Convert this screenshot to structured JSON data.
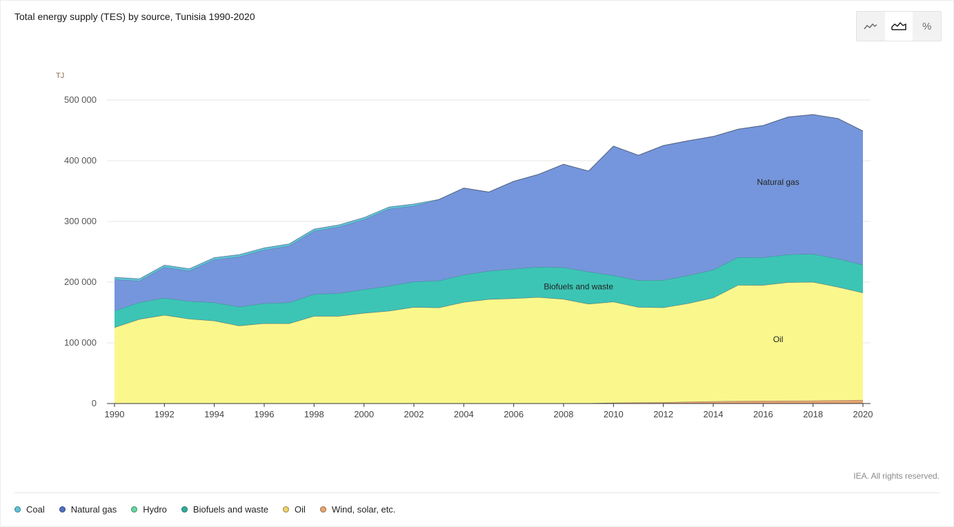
{
  "chart_data": {
    "type": "area",
    "stacked": true,
    "title": "Total energy supply (TES) by source, Tunisia 1990-2020",
    "yunit": "TJ",
    "ylim": [
      0,
      500000
    ],
    "yticks": [
      0,
      100000,
      200000,
      300000,
      400000,
      500000
    ],
    "ytick_labels": [
      "0",
      "100 000",
      "200 000",
      "300 000",
      "400 000",
      "500 000"
    ],
    "xlim": [
      1990,
      2020
    ],
    "xticks": [
      1990,
      1992,
      1994,
      1996,
      1998,
      2000,
      2002,
      2004,
      2006,
      2008,
      2010,
      2012,
      2014,
      2016,
      2018,
      2020
    ],
    "x": [
      1990,
      1991,
      1992,
      1993,
      1994,
      1995,
      1996,
      1997,
      1998,
      1999,
      2000,
      2001,
      2002,
      2003,
      2004,
      2005,
      2006,
      2007,
      2008,
      2009,
      2010,
      2011,
      2012,
      2013,
      2014,
      2015,
      2016,
      2017,
      2018,
      2019,
      2020
    ],
    "grid": true,
    "legend_position": "bottom",
    "series": [
      {
        "name": "Wind, solar, etc.",
        "color": "#e9a56f",
        "values": [
          0,
          0,
          0,
          0,
          0,
          0,
          0,
          0,
          0,
          0,
          0,
          0,
          0,
          0,
          0,
          0,
          0,
          100,
          200,
          600,
          1500,
          1700,
          2200,
          3000,
          3800,
          4200,
          4600,
          4700,
          4800,
          5500,
          5800
        ]
      },
      {
        "name": "Oil",
        "color": "#faf88c",
        "values": [
          125500,
          139000,
          145800,
          139500,
          136400,
          128200,
          132000,
          131800,
          144000,
          144100,
          149000,
          152500,
          158700,
          158000,
          167000,
          171700,
          173200,
          175000,
          171900,
          163500,
          166100,
          157000,
          156000,
          162000,
          170400,
          191000,
          190400,
          195000,
          195400,
          186500,
          176700
        ]
      },
      {
        "name": "Hydro",
        "color": "#64d7a0",
        "values": [
          100,
          100,
          100,
          100,
          100,
          100,
          100,
          100,
          100,
          100,
          100,
          100,
          100,
          100,
          100,
          100,
          100,
          100,
          100,
          100,
          100,
          100,
          100,
          100,
          100,
          100,
          100,
          100,
          100,
          100,
          100
        ]
      },
      {
        "name": "Biofuels and waste",
        "color": "#3cc5b5",
        "values": [
          27000,
          27600,
          28000,
          29000,
          30000,
          31000,
          33000,
          34600,
          36000,
          37500,
          39000,
          41000,
          42000,
          44300,
          45000,
          46500,
          48400,
          49900,
          52000,
          53000,
          43300,
          44000,
          45000,
          46000,
          46000,
          45700,
          45500,
          45800,
          46000,
          46500,
          45900
        ]
      },
      {
        "name": "Natural gas",
        "color": "#7596dc",
        "values": [
          51700,
          35300,
          50500,
          49800,
          70400,
          82500,
          87900,
          93000,
          104000,
          109300,
          114900,
          126900,
          124700,
          133700,
          142900,
          130100,
          144300,
          152500,
          170000,
          165800,
          213100,
          206200,
          221700,
          221900,
          219700,
          210900,
          217400,
          226500,
          229700,
          230900,
          220500
        ]
      },
      {
        "name": "Coal",
        "color": "#5fc4d9",
        "values": [
          3600,
          3400,
          3600,
          3600,
          3400,
          3500,
          3400,
          3400,
          3300,
          3300,
          3400,
          3300,
          3300,
          0,
          0,
          0,
          0,
          0,
          0,
          0,
          0,
          0,
          0,
          0,
          0,
          0,
          0,
          0,
          0,
          0,
          0
        ]
      }
    ],
    "labels": [
      {
        "text": "Natural gas",
        "x": 2016.6,
        "y": 360000
      },
      {
        "text": "Biofuels and waste",
        "x": 2008.6,
        "y": 188000
      },
      {
        "text": "Oil",
        "x": 2016.6,
        "y": 101000
      }
    ]
  },
  "legend": [
    {
      "label": "Coal",
      "color": "#5fc4d9"
    },
    {
      "label": "Natural gas",
      "color": "#4f71c4"
    },
    {
      "label": "Hydro",
      "color": "#64d7a0"
    },
    {
      "label": "Biofuels and waste",
      "color": "#2fae9d"
    },
    {
      "label": "Oil",
      "color": "#eed26a"
    },
    {
      "label": "Wind, solar, etc.",
      "color": "#e9a56f"
    }
  ],
  "toolbar": {
    "buttons": [
      {
        "name": "line-chart-icon",
        "active": false
      },
      {
        "name": "area-chart-icon",
        "active": true
      },
      {
        "name": "percent-icon",
        "label": "%",
        "active": false
      }
    ]
  },
  "footer": {
    "copyright": "IEA. All rights reserved."
  }
}
